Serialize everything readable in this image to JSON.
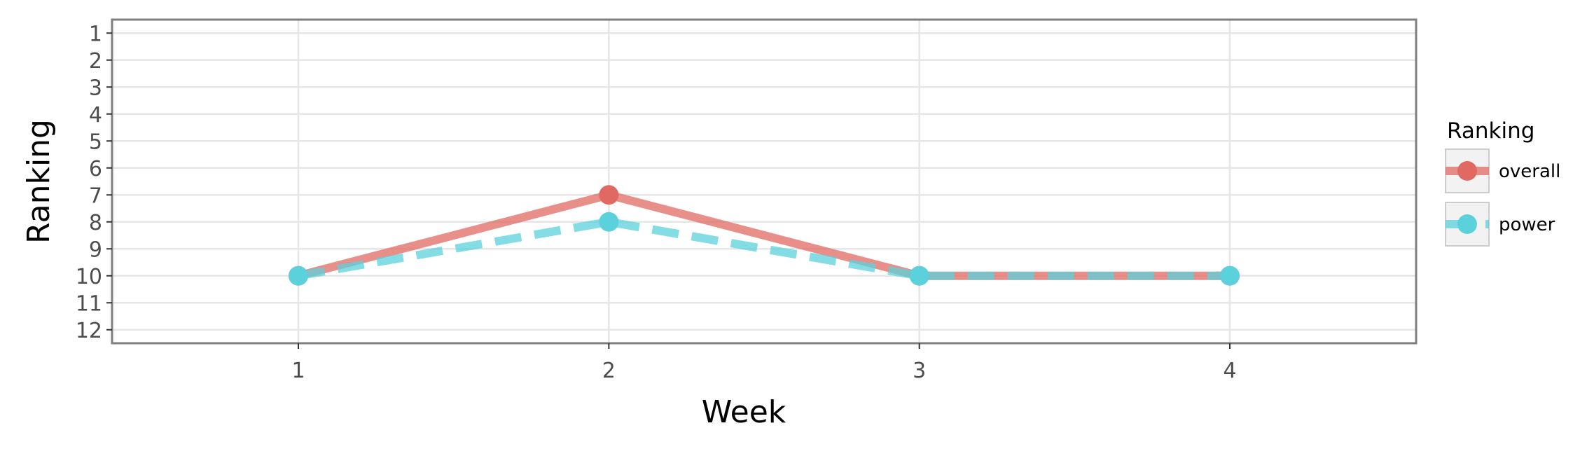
{
  "chart_data": {
    "type": "line",
    "x": [
      1,
      2,
      3,
      4
    ],
    "series": [
      {
        "name": "overall",
        "values": [
          10,
          7,
          10,
          10
        ],
        "color": "#E06A63",
        "linestyle": "solid"
      },
      {
        "name": "power",
        "values": [
          10,
          8,
          10,
          10
        ],
        "color": "#5BD1DB",
        "linestyle": "dashed"
      }
    ],
    "xlabel": "Week",
    "ylabel": "Ranking",
    "xticks": [
      "1",
      "2",
      "3",
      "4"
    ],
    "yticks": [
      "1",
      "2",
      "3",
      "4",
      "5",
      "6",
      "7",
      "8",
      "9",
      "10",
      "11",
      "12"
    ],
    "xlim": [
      0.4,
      4.6
    ],
    "ylim": [
      12.5,
      0.5
    ],
    "y_reversed": true,
    "grid": true,
    "legend": {
      "title": "Ranking",
      "position": "right"
    }
  }
}
